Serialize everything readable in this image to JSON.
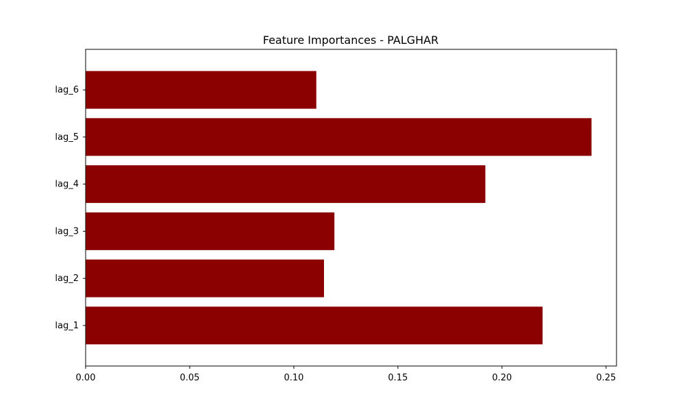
{
  "chart_data": {
    "type": "bar",
    "orientation": "horizontal",
    "title": "Feature Importances - PALGHAR",
    "xlabel": "",
    "ylabel": "",
    "categories": [
      "lag_1",
      "lag_2",
      "lag_3",
      "lag_4",
      "lag_5",
      "lag_6"
    ],
    "values": [
      0.2195,
      0.1145,
      0.1195,
      0.192,
      0.243,
      0.1108
    ],
    "xlim": [
      0.0,
      0.255
    ],
    "xticks": [
      "0.00",
      "0.05",
      "0.10",
      "0.15",
      "0.20",
      "0.25"
    ],
    "grid": false,
    "bar_color": "#8b0000"
  }
}
